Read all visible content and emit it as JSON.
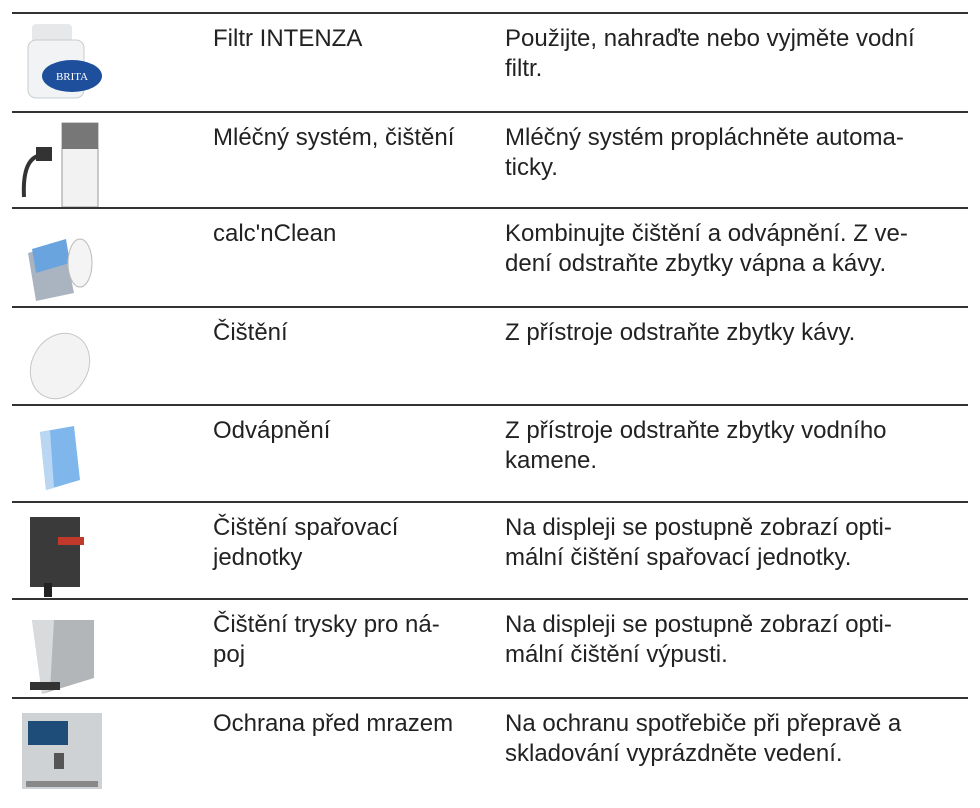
{
  "table": {
    "rows": [
      {
        "icon_label": "BRITA",
        "name": [
          "Filtr INTENZA"
        ],
        "description": [
          "Použijte, nahraďte nebo vyjměte vodní",
          "filtr."
        ]
      },
      {
        "name": [
          "Mléčný systém, čištění"
        ],
        "description": [
          "Mléčný systém propláchněte automa-",
          "ticky."
        ]
      },
      {
        "name": [
          "calc'nClean"
        ],
        "description": [
          "Kombinujte čištění a odvápnění. Z ve-",
          "dení odstraňte zbytky vápna a kávy."
        ]
      },
      {
        "name": [
          "Čištění"
        ],
        "description": [
          "Z přístroje odstraňte zbytky kávy."
        ]
      },
      {
        "name": [
          "Odvápnění"
        ],
        "description": [
          "Z přístroje odstraňte zbytky vodního",
          "kamene."
        ]
      },
      {
        "name": [
          "Čištění spařovací",
          "jednotky"
        ],
        "description": [
          "Na displeji se postupně zobrazí opti-",
          "mální čištění spařovací jednotky."
        ]
      },
      {
        "name": [
          "Čištění trysky pro ná-",
          "poj"
        ],
        "description": [
          "Na displeji se postupně zobrazí opti-",
          "mální čištění výpusti."
        ]
      },
      {
        "name": [
          "Ochrana před mrazem"
        ],
        "description": [
          "Na ochranu spotřebiče při přepravě a",
          "skladování vyprázdněte vedení."
        ]
      }
    ]
  }
}
